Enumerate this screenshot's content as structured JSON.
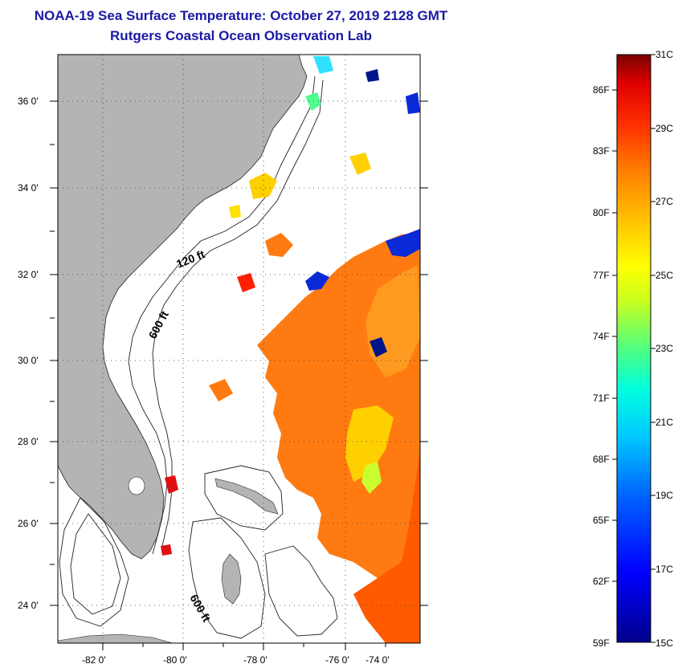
{
  "header": {
    "title": "NOAA-19 Sea Surface Temperature:  October 27, 2019 2128 GMT",
    "subtitle": "Rutgers Coastal Ocean Observation Lab"
  },
  "map": {
    "lat_labels": [
      "36 0'",
      "34 0'",
      "32 0'",
      "30 0'",
      "28 0'",
      "26 0'",
      "24 0'"
    ],
    "lon_labels": [
      "-82 0'",
      "-80 0'",
      "-78 0'",
      "-76 0'",
      "-74 0'"
    ],
    "contour_labels": [
      "120 ft",
      "600 ft",
      "600 ft"
    ],
    "land_color": "#b4b4b4"
  },
  "colorbar": {
    "fahrenheit_labels": [
      "86F",
      "83F",
      "80F",
      "77F",
      "74F",
      "71F",
      "68F",
      "65F",
      "62F",
      "59F"
    ],
    "celsius_labels": [
      "31C",
      "29C",
      "27C",
      "25C",
      "23C",
      "21C",
      "19C",
      "17C",
      "15C"
    ],
    "min_c": 15,
    "max_c": 31
  }
}
